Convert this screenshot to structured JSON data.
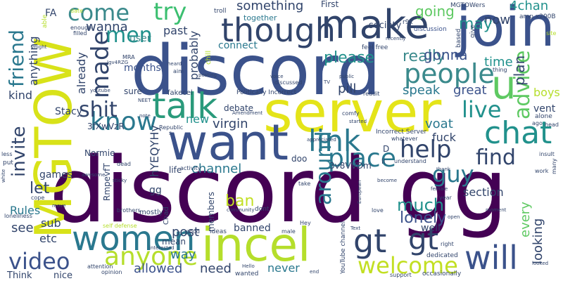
{
  "palette": {
    "dark_purple": "#440154",
    "indigo": "#3b528b",
    "teal": "#21918c",
    "green": "#5ec962",
    "yellow": "#fde725",
    "navy": "#31446b",
    "sea": "#2a788e"
  },
  "words": {
    "discord_gg_discord": "discord",
    "discord_gg_gg": "gg",
    "discord_top": "discord",
    "server": "server",
    "want": "want",
    "join": "join",
    "incel": "incel",
    "mgtow": "MGTOW",
    "make": "make",
    "talk": "talk",
    "though": "though",
    "people": "people",
    "chat": "chat",
    "women": "women",
    "anyone": "anyone",
    "welcome": "welcome",
    "will": "will",
    "gt1": "gt",
    "gt2": "gt",
    "link": "link",
    "help": "help",
    "place": "place",
    "come": "come",
    "try": "try",
    "made": "made",
    "know": "know",
    "shit": "shit",
    "live": "live",
    "guy": "guy",
    "find": "find",
    "advice": "advice",
    "u": "u",
    "video": "video",
    "friend": "friend",
    "invite": "invite",
    "around": "around",
    "men": "men",
    "lonely": "lonely",
    "much": "much",
    "something": "something",
    "really": "really",
    "please": "please",
    "going": "going",
    "gonna": "gonna",
    "now": "now",
    "fourchan": "4chan",
    "may": "may",
    "time": "time",
    "pill": "pill",
    "speak": "speak",
    "great": "great",
    "plan": "plan",
    "boys": "boys",
    "vent": "vent",
    "voat": "voat",
    "fuck": "fuck",
    "section": "section",
    "channel": "channel",
    "virgin": "virgin",
    "new": "new",
    "ban": "ban",
    "banned": "banned",
    "post": "post",
    "way": "way",
    "allowed": "allowed",
    "need": "need",
    "never": "never",
    "every": "every",
    "looking": "looking",
    "well": "well",
    "sub": "sub",
    "etc": "etc",
    "see": "see",
    "rules": "Rules",
    "let": "let",
    "games": "games",
    "kind": "kind",
    "already": "already",
    "anything": "anything",
    "wanna": "wanna",
    "user": "user",
    "months": "months",
    "probably": "probably",
    "past": "past",
    "connect": "connect",
    "together": "together",
    "society": "society",
    "first": "First",
    "mgtowers": "MGTOWers",
    "amp_x200b": "amp x200B",
    "r9k": "r9k",
    "discussion": "discussion",
    "feel_free": "feel free",
    "based": "based",
    "give": "give",
    "fa": "FA",
    "troll": "troll",
    "date": "date",
    "able": "able",
    "enough": "enough",
    "filled": "filled",
    "might": "might",
    "mra": "MRA",
    "jgv4rzg": "Jgv4RZG",
    "heard": "heard",
    "aim": "aim",
    "chill": "chill",
    "posting": "posting",
    "youtube": "youtube",
    "sure": "sure",
    "fakecel": "fakecel",
    "politically_incorrect": "Politically Incorrect",
    "reddit": "reddit",
    "discussed": "discussed",
    "voice": "voice",
    "public": "public",
    "recently": "recently",
    "tv": "TV",
    "thing": "thing",
    "site": "site",
    "ago": "ago",
    "alone": "alone",
    "head": "head",
    "insult": "insult",
    "work": "work",
    "many": "many",
    "stacy": "Stacy",
    "code1": "3fXwVzR",
    "code2": "hYEQYHy",
    "code3": "3v8VVDm",
    "code4": "RmpevfT",
    "normie": "Normie",
    "d": "D",
    "ll": "ll",
    "doo": "doo",
    "life": "life",
    "gg_small": "gg",
    "neet": "NEET",
    "note": "note",
    "debate": "debate",
    "amendment": "Amendment",
    "republic": "Republic",
    "s": "s",
    "incorrect_server": "Incorrect Server",
    "comfy": "comfy",
    "appreciated": "appreciated",
    "started": "started",
    "whatever": "whatever",
    "understand": "understand",
    "thank": "thank",
    "take": "take",
    "become": "become",
    "european": "European",
    "female": "female",
    "year": "year",
    "chad": "Chad",
    "mostly": "mostly",
    "members": "members",
    "activity": "activity",
    "sticky": "sticky",
    "dead": "dead",
    "awesome": "awesome",
    "less": "less",
    "put": "put",
    "white": "white",
    "cope": "cope",
    "move": "move",
    "loneliness": "loneliness",
    "brothers": "brothers",
    "self_defense": "self defense",
    "community": "community",
    "dont": "dont",
    "youtube_channel": "YouTube channel",
    "ideas": "ideas",
    "male": "male",
    "hey": "Hey",
    "good": "good",
    "mean": "mean",
    "interested": "interested",
    "hello": "Hello",
    "wanted": "wanted",
    "end": "end",
    "attention": "attention",
    "opinion": "opinion",
    "nice": "nice",
    "think": "Think",
    "support": "support",
    "occasionally": "occasionally",
    "dedicated": "dedicated",
    "right": "right",
    "love": "love",
    "open": "open",
    "text": "Text",
    "moment": "moment",
    "looked": "looked"
  }
}
